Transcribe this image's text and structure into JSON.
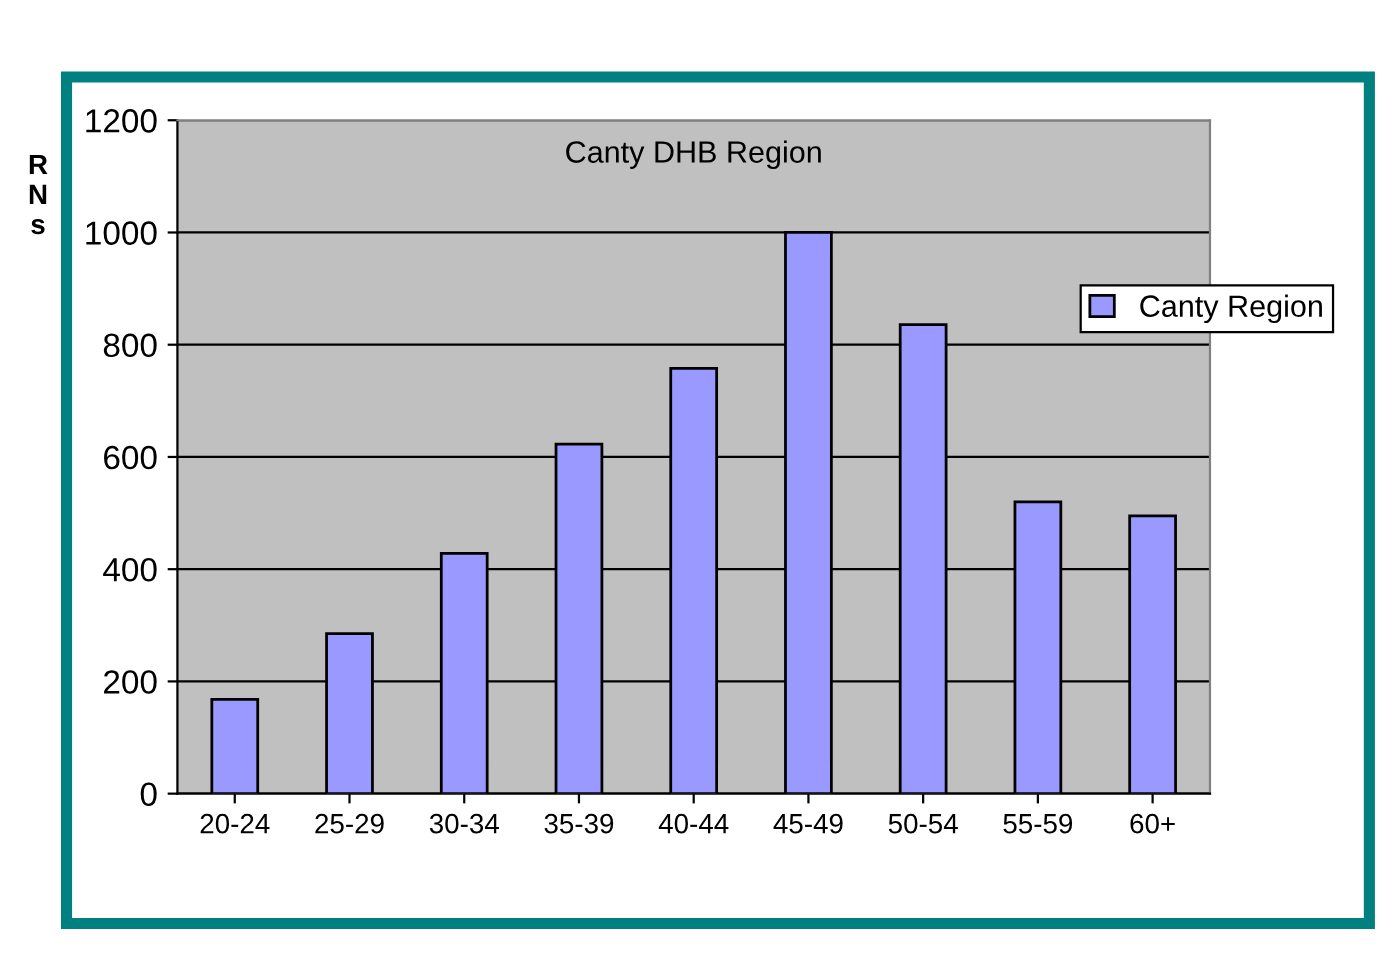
{
  "chart_data": {
    "type": "bar",
    "title": "Canty DHB Region",
    "ylabel": "RNs",
    "categories": [
      "20-24",
      "25-29",
      "30-34",
      "35-39",
      "40-44",
      "45-49",
      "50-54",
      "55-59",
      "60+"
    ],
    "series": [
      {
        "name": "Canty Region",
        "color": "#9999ff",
        "values": [
          168,
          285,
          428,
          623,
          758,
          1000,
          836,
          520,
          495
        ]
      }
    ],
    "ylim": [
      0,
      1200
    ],
    "yticks": [
      0,
      200,
      400,
      600,
      800,
      1000,
      1200
    ],
    "grid": "y",
    "legend": "right"
  }
}
